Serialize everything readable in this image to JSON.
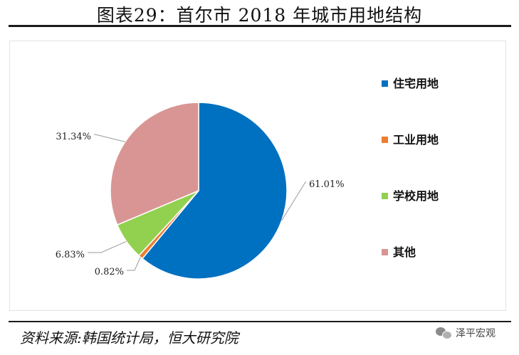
{
  "header": {
    "title": "图表29：首尔市 2018 年城市用地结构"
  },
  "chart_data": {
    "type": "pie",
    "slices": [
      {
        "label": "住宅用地",
        "value": 61.01,
        "value_label": "61.01%",
        "color": "#0070C0"
      },
      {
        "label": "工业用地",
        "value": 0.82,
        "value_label": "0.82%",
        "color": "#ED7D31"
      },
      {
        "label": "学校用地",
        "value": 6.83,
        "value_label": "6.83%",
        "color": "#92D050"
      },
      {
        "label": "其他",
        "value": 31.34,
        "value_label": "31.34%",
        "color": "#D99594"
      }
    ],
    "start": "12 o'clock",
    "direction": "clockwise",
    "legend_position": "right"
  },
  "footer": {
    "source": "资料来源:韩国统计局，恒大研究院",
    "watermark": "泽平宏观"
  }
}
